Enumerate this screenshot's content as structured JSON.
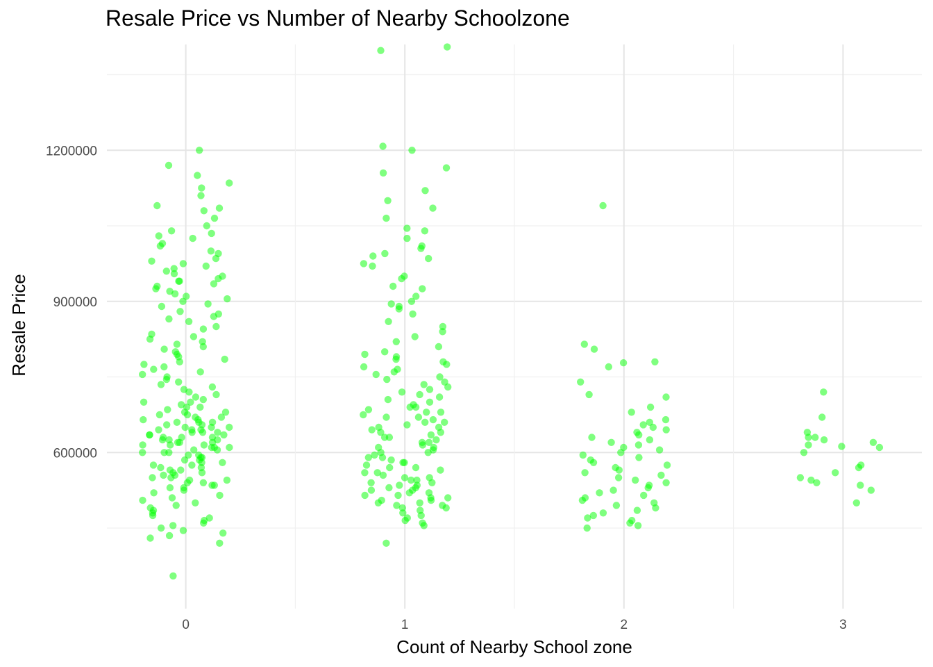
{
  "chart_data": {
    "type": "scatter",
    "title": "Resale Price vs Number of Nearby Schoolzone",
    "xlabel": "Count of Nearby School zone",
    "ylabel": "Resale Price",
    "x_ticks": [
      "0",
      "1",
      "2",
      "3"
    ],
    "y_ticks": [
      "600000",
      "900000",
      "1200000"
    ],
    "xlim": [
      -0.36,
      3.36
    ],
    "ylim": [
      290000,
      1410000
    ],
    "grid": true,
    "jitter": 0.2,
    "point_color": "#00FF00",
    "point_opacity": 0.5,
    "series": [
      {
        "x": 0,
        "values": [
          1200000,
          1170000,
          1150000,
          1135000,
          1125000,
          1110000,
          1090000,
          1085000,
          1080000,
          1065000,
          1050000,
          1040000,
          1035000,
          1030000,
          1025000,
          1015000,
          1010000,
          1000000,
          995000,
          985000,
          980000,
          975000,
          970000,
          965000,
          960000,
          955000,
          950000,
          945000,
          940000,
          940000,
          935000,
          930000,
          925000,
          920000,
          915000,
          910000,
          905000,
          900000,
          895000,
          890000,
          880000,
          875000,
          870000,
          865000,
          860000,
          850000,
          845000,
          835000,
          830000,
          825000,
          820000,
          815000,
          810000,
          805000,
          800000,
          795000,
          790000,
          785000,
          780000,
          775000,
          770000,
          765000,
          760000,
          755000,
          750000,
          745000,
          740000,
          735000,
          730000,
          725000,
          720000,
          715000,
          710000,
          705000,
          700000,
          700000,
          695000,
          690000,
          690000,
          685000,
          680000,
          680000,
          675000,
          675000,
          670000,
          670000,
          665000,
          665000,
          660000,
          660000,
          660000,
          655000,
          655000,
          650000,
          650000,
          650000,
          645000,
          645000,
          645000,
          640000,
          640000,
          640000,
          635000,
          635000,
          635000,
          630000,
          630000,
          630000,
          625000,
          625000,
          625000,
          620000,
          620000,
          620000,
          615000,
          615000,
          615000,
          610000,
          610000,
          610000,
          605000,
          605000,
          600000,
          600000,
          600000,
          595000,
          595000,
          590000,
          590000,
          585000,
          585000,
          580000,
          580000,
          575000,
          575000,
          570000,
          570000,
          565000,
          565000,
          560000,
          560000,
          555000,
          555000,
          550000,
          550000,
          545000,
          545000,
          540000,
          540000,
          535000,
          535000,
          530000,
          530000,
          525000,
          520000,
          515000,
          510000,
          505000,
          500000,
          495000,
          490000,
          485000,
          480000,
          475000,
          470000,
          465000,
          460000,
          455000,
          450000,
          445000,
          440000,
          435000,
          430000,
          420000,
          355000
        ]
      },
      {
        "x": 1,
        "values": [
          1405000,
          1398000,
          1208000,
          1200000,
          1165000,
          1155000,
          1120000,
          1100000,
          1085000,
          1065000,
          1045000,
          1040000,
          1025000,
          1010000,
          1005000,
          995000,
          990000,
          985000,
          975000,
          970000,
          950000,
          945000,
          930000,
          925000,
          910000,
          900000,
          895000,
          890000,
          885000,
          875000,
          860000,
          850000,
          840000,
          830000,
          820000,
          810000,
          800000,
          795000,
          790000,
          785000,
          780000,
          775000,
          770000,
          765000,
          760000,
          755000,
          750000,
          745000,
          740000,
          735000,
          730000,
          725000,
          720000,
          715000,
          710000,
          705000,
          700000,
          695000,
          690000,
          690000,
          685000,
          680000,
          680000,
          675000,
          670000,
          670000,
          665000,
          660000,
          660000,
          655000,
          650000,
          650000,
          645000,
          640000,
          640000,
          635000,
          630000,
          630000,
          625000,
          620000,
          620000,
          615000,
          610000,
          610000,
          605000,
          600000,
          600000,
          595000,
          590000,
          590000,
          585000,
          580000,
          580000,
          575000,
          570000,
          570000,
          565000,
          560000,
          560000,
          555000,
          550000,
          550000,
          545000,
          545000,
          540000,
          540000,
          535000,
          535000,
          530000,
          530000,
          525000,
          525000,
          520000,
          520000,
          515000,
          515000,
          510000,
          510000,
          505000,
          505000,
          500000,
          500000,
          495000,
          495000,
          490000,
          490000,
          485000,
          480000,
          475000,
          470000,
          465000,
          460000,
          455000,
          420000
        ]
      },
      {
        "x": 2,
        "values": [
          1090000,
          815000,
          805000,
          780000,
          778000,
          770000,
          740000,
          715000,
          710000,
          690000,
          680000,
          665000,
          660000,
          655000,
          650000,
          645000,
          640000,
          635000,
          630000,
          625000,
          620000,
          615000,
          610000,
          605000,
          600000,
          595000,
          590000,
          585000,
          580000,
          575000,
          570000,
          565000,
          560000,
          555000,
          550000,
          545000,
          540000,
          535000,
          530000,
          525000,
          520000,
          515000,
          510000,
          505000,
          500000,
          495000,
          490000,
          485000,
          480000,
          475000,
          470000,
          465000,
          460000,
          455000,
          450000
        ]
      },
      {
        "x": 3,
        "values": [
          720000,
          670000,
          640000,
          630000,
          630000,
          625000,
          620000,
          615000,
          612000,
          610000,
          600000,
          575000,
          570000,
          560000,
          550000,
          545000,
          540000,
          535000,
          525000,
          500000
        ]
      }
    ]
  }
}
